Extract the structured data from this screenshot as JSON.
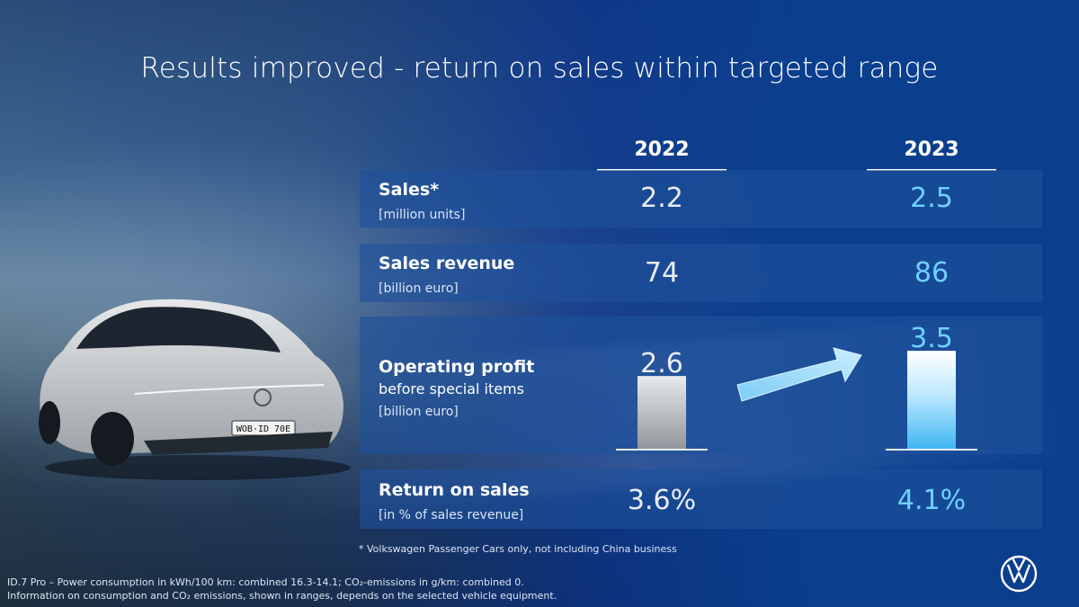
{
  "title": "Results improved - return on sales within targeted range",
  "years": {
    "y2022": "2022",
    "y2023": "2023"
  },
  "rows": {
    "sales": {
      "label": "Sales*",
      "unit": "[million units]",
      "v2022": "2.2",
      "v2023": "2.5"
    },
    "revenue": {
      "label": "Sales revenue",
      "unit": "[billion euro]",
      "v2022": "74",
      "v2023": "86"
    },
    "profit": {
      "label": "Operating profit",
      "sublabel": "before special items",
      "unit": "[billion euro]"
    },
    "ros": {
      "label": "Return on sales",
      "unit": "[in % of sales revenue]",
      "v2022": "3.6%",
      "v2023": "4.1%"
    }
  },
  "chart_data": {
    "type": "bar",
    "title": "Operating profit before special items",
    "ylabel": "billion euro",
    "categories": [
      "2022",
      "2023"
    ],
    "values": [
      2.6,
      3.5
    ],
    "data_labels": [
      "2.6",
      "3.5"
    ],
    "ylim": [
      0,
      3.6
    ],
    "colors": {
      "2022": "#cfd3d8",
      "2023": "#6fd0ff"
    },
    "annotation": "arrow-up-right"
  },
  "footnote": "* Volkswagen Passenger Cars only, not including China business",
  "disclaimer": {
    "line1": "ID.7 Pro – Power consumption in kWh/100 km: combined 16.3-14.1; CO₂-emissions in g/km: combined 0.",
    "line2": "Information on consumption and CO₂ emissions, shown in ranges, depends on the selected vehicle equipment."
  },
  "car": {
    "plate": "WOB·ID 70E"
  },
  "brand": {
    "logo": "vw-logo-icon"
  }
}
